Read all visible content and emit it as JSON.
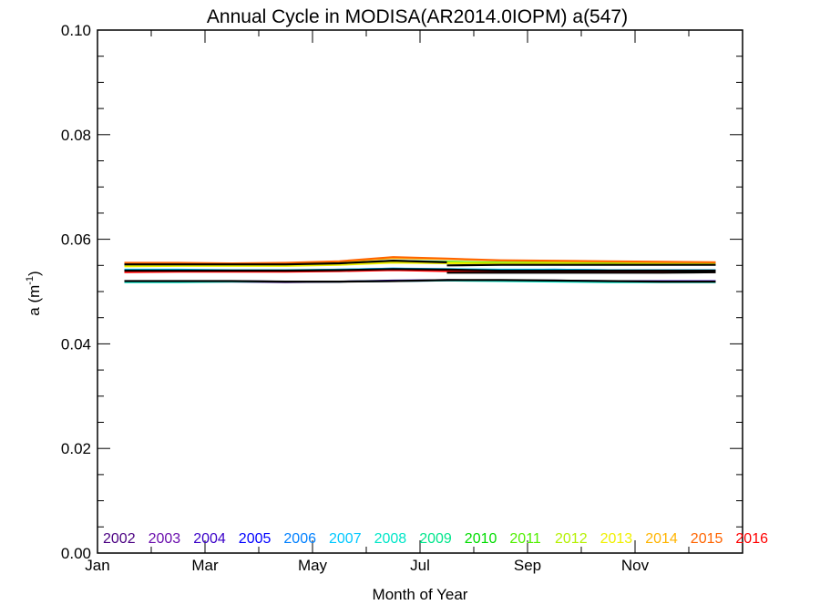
{
  "chart_data": {
    "type": "line",
    "title": "Annual Cycle in MODISA(AR2014.0IOPM) a(547)",
    "xlabel": "Month of Year",
    "ylabel_main": "a (m",
    "ylabel_sup": "-1",
    "ylabel_close": ")",
    "xlim": [
      1,
      13
    ],
    "ylim": [
      0.0,
      0.1
    ],
    "x_tick_labels": [
      "Jan",
      "Mar",
      "May",
      "Jul",
      "Sep",
      "Nov"
    ],
    "x_tick_values": [
      1,
      3,
      5,
      7,
      9,
      11
    ],
    "y_tick_labels": [
      "0.00",
      "0.02",
      "0.04",
      "0.06",
      "0.08",
      "0.10"
    ],
    "y_tick_values": [
      0.0,
      0.02,
      0.04,
      0.06,
      0.08,
      0.1
    ],
    "grid": false,
    "legend_position": "bottom",
    "legend": [
      {
        "label": "2002",
        "color": "#4b0082"
      },
      {
        "label": "2003",
        "color": "#6a0dad"
      },
      {
        "label": "2004",
        "color": "#3a00c8"
      },
      {
        "label": "2005",
        "color": "#0000ff"
      },
      {
        "label": "2006",
        "color": "#0080ff"
      },
      {
        "label": "2007",
        "color": "#00c8ff"
      },
      {
        "label": "2008",
        "color": "#00e6c8"
      },
      {
        "label": "2009",
        "color": "#00e68c"
      },
      {
        "label": "2010",
        "color": "#00dc00"
      },
      {
        "label": "2011",
        "color": "#50f000"
      },
      {
        "label": "2012",
        "color": "#b4f000"
      },
      {
        "label": "2013",
        "color": "#f0f000"
      },
      {
        "label": "2014",
        "color": "#ffb400"
      },
      {
        "label": "2015",
        "color": "#ff6400"
      },
      {
        "label": "2016",
        "color": "#ff0000"
      }
    ],
    "x": [
      1.5,
      2.5,
      3.5,
      4.5,
      5.5,
      6.5,
      7.5,
      8.5,
      9.5,
      10.5,
      11.5,
      12.5
    ],
    "series": [
      {
        "name": "2002",
        "color": "#4b0082",
        "values": [
          null,
          null,
          null,
          null,
          null,
          null,
          0.0522,
          0.0521,
          0.052,
          0.0519,
          0.0519,
          0.0519
        ]
      },
      {
        "name": "2003",
        "color": "#6a0dad",
        "values": [
          0.0519,
          0.0519,
          0.0519,
          0.0518,
          0.0519,
          0.052,
          0.0521,
          0.0521,
          0.052,
          0.052,
          0.0519,
          0.0519
        ]
      },
      {
        "name": "2004",
        "color": "#3a00c8",
        "values": [
          0.052,
          0.052,
          0.052,
          0.0519,
          0.0519,
          0.0521,
          0.0522,
          0.0521,
          0.0521,
          0.052,
          0.052,
          0.052
        ]
      },
      {
        "name": "2005",
        "color": "#0000ff",
        "values": [
          0.054,
          0.054,
          0.0539,
          0.054,
          0.0541,
          0.0543,
          0.0542,
          0.0541,
          0.0541,
          0.054,
          0.054,
          0.054
        ]
      },
      {
        "name": "2006",
        "color": "#0080ff",
        "values": [
          0.0541,
          0.0541,
          0.054,
          0.054,
          0.0542,
          0.0544,
          0.0542,
          0.0541,
          0.0542,
          0.0541,
          0.0541,
          0.0541
        ]
      },
      {
        "name": "2007",
        "color": "#00c8ff",
        "values": [
          0.0542,
          0.0542,
          0.0541,
          0.0541,
          0.0542,
          0.0544,
          0.0543,
          0.0542,
          0.0542,
          0.0541,
          0.0541,
          0.0541
        ]
      },
      {
        "name": "2008",
        "color": "#00e6c8",
        "values": [
          0.0518,
          0.0518,
          0.0519,
          0.0519,
          0.0519,
          0.052,
          0.0521,
          0.052,
          0.0519,
          0.0518,
          0.0518,
          0.0518
        ]
      },
      {
        "name": "2009",
        "color": "#00e68c",
        "values": [
          0.0549,
          0.055,
          0.055,
          0.055,
          0.0552,
          0.0556,
          0.0555,
          0.0553,
          0.0553,
          0.0552,
          0.0552,
          0.0552
        ]
      },
      {
        "name": "2010",
        "color": "#00dc00",
        "values": [
          0.0552,
          0.0552,
          0.0552,
          0.0552,
          0.0554,
          0.0559,
          0.0557,
          0.0555,
          0.0555,
          0.0554,
          0.0554,
          0.0554
        ]
      },
      {
        "name": "2011",
        "color": "#50f000",
        "values": [
          0.0553,
          0.0553,
          0.0552,
          0.0553,
          0.0554,
          0.0558,
          0.0556,
          0.0555,
          0.0555,
          0.0554,
          0.0554,
          0.0554
        ]
      },
      {
        "name": "2012",
        "color": "#b4f000",
        "values": [
          0.055,
          0.055,
          0.055,
          0.0551,
          0.0553,
          0.0557,
          0.0556,
          0.0554,
          0.0554,
          0.0553,
          0.0553,
          0.0553
        ]
      },
      {
        "name": "2013",
        "color": "#f0f000",
        "values": [
          0.0548,
          0.0549,
          0.0549,
          0.0549,
          0.0551,
          0.0555,
          0.0554,
          0.0553,
          0.0553,
          0.0552,
          0.0552,
          0.0552
        ]
      },
      {
        "name": "2014",
        "color": "#ffb400",
        "values": [
          0.0554,
          0.0554,
          0.0554,
          0.0554,
          0.0557,
          0.0564,
          0.0562,
          0.0559,
          0.0558,
          0.0557,
          0.0556,
          0.0556
        ]
      },
      {
        "name": "2015",
        "color": "#ff6400",
        "values": [
          0.0555,
          0.0555,
          0.0554,
          0.0555,
          0.0558,
          0.0566,
          0.0563,
          0.056,
          0.0559,
          0.0558,
          0.0557,
          0.0556
        ]
      },
      {
        "name": "2016",
        "color": "#ff0000",
        "values": [
          0.0537,
          0.0538,
          0.0538,
          0.0538,
          0.0539,
          0.0541,
          0.0539,
          0.0537,
          0.0537,
          0.0537,
          0.0537,
          0.0537
        ]
      },
      {
        "name": "",
        "color": "#000000",
        "values": [
          0.0552,
          0.0552,
          0.0552,
          0.0552,
          0.0554,
          0.0559,
          0.0556,
          null,
          null,
          null,
          null,
          null
        ]
      },
      {
        "name": "",
        "color": "#000000",
        "values": [
          null,
          null,
          null,
          null,
          null,
          null,
          0.055,
          0.0551,
          0.0551,
          0.0551,
          0.0551,
          0.0551
        ]
      },
      {
        "name": "",
        "color": "#000000",
        "values": [
          0.054,
          0.054,
          0.054,
          0.054,
          0.0541,
          0.0543,
          0.0542,
          0.054,
          0.054,
          0.054,
          0.054,
          0.054
        ]
      },
      {
        "name": "",
        "color": "#000000",
        "values": [
          null,
          null,
          null,
          null,
          null,
          null,
          0.0536,
          0.0536,
          0.0536,
          0.0536,
          0.0536,
          0.0537
        ]
      },
      {
        "name": "",
        "color": "#000000",
        "values": [
          0.052,
          0.052,
          0.052,
          0.0519,
          0.0519,
          0.052,
          0.0522,
          0.0522,
          0.0521,
          0.052,
          0.0519,
          0.0519
        ]
      }
    ]
  }
}
